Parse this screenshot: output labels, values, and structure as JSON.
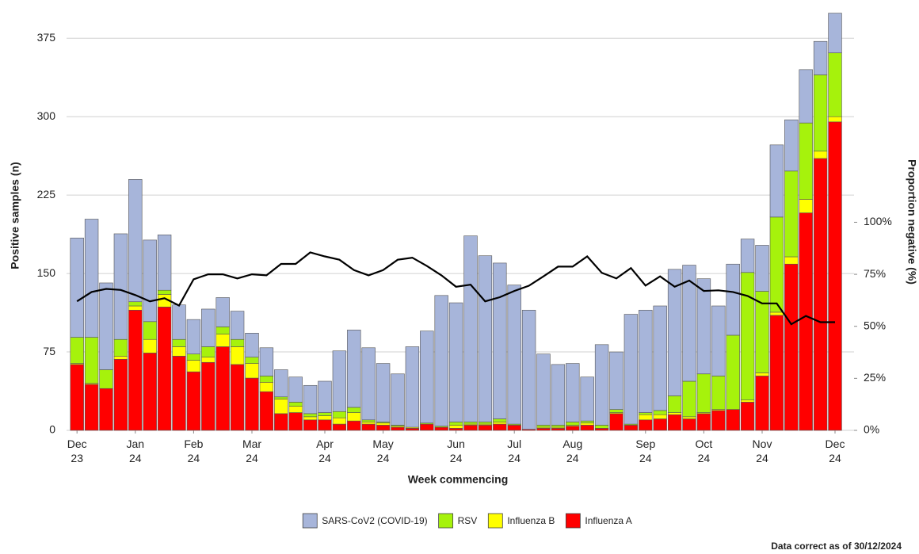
{
  "chart_data": {
    "type": "bar",
    "stacked": true,
    "x_label": "Week commencing",
    "y_label": "Positive samples (n)",
    "y2_label": "Proportion negative (%)",
    "footnote": "Data correct as of 30/12/2024",
    "categories": [
      "Dec 23",
      null,
      null,
      null,
      "Jan 24",
      null,
      null,
      null,
      "Feb 24",
      null,
      null,
      null,
      "Mar 24",
      null,
      null,
      null,
      null,
      "Apr 24",
      null,
      null,
      null,
      "May 24",
      null,
      null,
      null,
      null,
      "Jun 24",
      null,
      null,
      null,
      "Jul 24",
      null,
      null,
      null,
      "Aug 24",
      null,
      null,
      null,
      null,
      "Sep 24",
      null,
      null,
      null,
      "Oct 24",
      null,
      null,
      null,
      "Nov 24",
      null,
      null,
      null,
      null,
      "Dec 24"
    ],
    "ylim": [
      0,
      404
    ],
    "yticks": [
      0,
      75,
      150,
      225,
      300,
      375
    ],
    "y2lim": [
      0,
      203
    ],
    "y2ticks": [
      {
        "value": 0,
        "label": "0%"
      },
      {
        "value": 25,
        "label": "25%"
      },
      {
        "value": 50,
        "label": "50%"
      },
      {
        "value": 75,
        "label": "75%"
      },
      {
        "value": 100,
        "label": "100%"
      }
    ],
    "grid": true,
    "legend": "bottom",
    "series": [
      {
        "name": "SARS-CoV2 (COVID-19)",
        "color": "#a7b5da",
        "values": [
          95,
          113,
          83,
          101,
          117,
          78,
          53,
          33,
          33,
          36,
          28,
          27,
          23,
          27,
          26,
          24,
          27,
          30,
          58,
          74,
          69,
          56,
          49,
          77,
          88,
          125,
          114,
          178,
          159,
          149,
          133,
          114,
          68,
          58,
          56,
          42,
          77,
          55,
          105,
          98,
          100,
          121,
          111,
          91,
          67,
          68,
          32,
          44,
          69,
          49,
          51,
          32,
          38
        ]
      },
      {
        "name": "RSV",
        "color": "#a6f20c",
        "values": [
          25,
          44,
          18,
          16,
          4,
          17,
          4,
          7,
          6,
          10,
          7,
          7,
          6,
          6,
          2,
          4,
          3,
          3,
          6,
          5,
          2,
          1,
          1,
          0,
          1,
          1,
          3,
          2,
          2,
          3,
          1,
          0,
          2,
          2,
          3,
          2,
          3,
          3,
          1,
          2,
          4,
          16,
          34,
          37,
          32,
          71,
          122,
          78,
          91,
          82,
          73,
          73,
          61
        ]
      },
      {
        "name": "Influenza B",
        "color": "#ffff00",
        "values": [
          1,
          1,
          0,
          3,
          4,
          13,
          12,
          9,
          11,
          5,
          12,
          17,
          14,
          9,
          14,
          6,
          3,
          4,
          6,
          8,
          2,
          2,
          1,
          1,
          0,
          0,
          3,
          1,
          1,
          2,
          0,
          0,
          1,
          1,
          1,
          2,
          0,
          1,
          0,
          5,
          4,
          2,
          2,
          1,
          1,
          0,
          2,
          3,
          3,
          7,
          13,
          7,
          5
        ]
      },
      {
        "name": "Influenza A",
        "color": "#ff0000",
        "values": [
          63,
          44,
          40,
          68,
          115,
          74,
          118,
          71,
          56,
          65,
          80,
          63,
          50,
          37,
          16,
          17,
          10,
          10,
          6,
          9,
          6,
          5,
          3,
          2,
          6,
          3,
          2,
          5,
          5,
          6,
          5,
          1,
          2,
          2,
          4,
          5,
          2,
          16,
          5,
          10,
          11,
          15,
          11,
          16,
          19,
          20,
          27,
          52,
          110,
          159,
          208,
          260,
          295
        ]
      },
      {
        "type": "line",
        "axis": "y2",
        "color": "#000000",
        "values": [
          62,
          66.5,
          68,
          67.5,
          65,
          62,
          63.5,
          60,
          72.6,
          75,
          75,
          73,
          75,
          74.5,
          80,
          80,
          85.5,
          83.6,
          82,
          77,
          74.5,
          77,
          82,
          83,
          79,
          74.5,
          69,
          70,
          62,
          64,
          67,
          69.5,
          74,
          78.7,
          78.7,
          83.6,
          75.7,
          73,
          78,
          69.6,
          74,
          69,
          72,
          67,
          67.3,
          66.5,
          64.6,
          61,
          61,
          51,
          55,
          52,
          52
        ]
      }
    ]
  }
}
